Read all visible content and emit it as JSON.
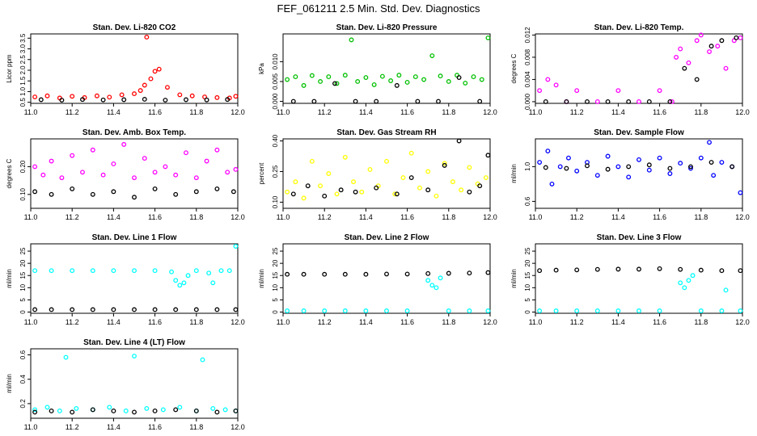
{
  "page_title": "FEF_061211  2.5 Min. Std. Dev. Diagnostics",
  "chart_data": [
    {
      "type": "scatter",
      "title": "Stan. Dev. Li-820 CO2",
      "xlabel": "",
      "ylabel": "Licor ppm",
      "xlim": [
        11.0,
        12.0
      ],
      "ylim": [
        0.45,
        3.7
      ],
      "xticks": [
        "11.0",
        "11.2",
        "11.4",
        "11.6",
        "11.8",
        "12.0"
      ],
      "yticks": [
        "0.5",
        "1.0",
        "1.5",
        "2.0",
        "2.5",
        "3.0",
        "3.5"
      ],
      "grid": false,
      "series": [
        {
          "name": "main",
          "color": "#ff0000",
          "x": [
            11.02,
            11.08,
            11.14,
            11.2,
            11.26,
            11.32,
            11.38,
            11.44,
            11.5,
            11.53,
            11.55,
            11.56,
            11.58,
            11.6,
            11.62,
            11.66,
            11.72,
            11.78,
            11.84,
            11.9,
            11.96,
            11.99
          ],
          "y": [
            0.75,
            0.8,
            0.7,
            0.78,
            0.72,
            0.8,
            0.74,
            0.85,
            0.9,
            1.05,
            1.3,
            3.55,
            1.6,
            1.95,
            2.05,
            1.2,
            0.85,
            0.8,
            0.75,
            0.72,
            0.7,
            0.78
          ]
        },
        {
          "name": "secondary",
          "color": "#000000",
          "x": [
            11.05,
            11.15,
            11.25,
            11.35,
            11.45,
            11.55,
            11.65,
            11.75,
            11.85,
            11.95
          ],
          "y": [
            0.62,
            0.6,
            0.63,
            0.61,
            0.62,
            0.64,
            0.6,
            0.62,
            0.61,
            0.63
          ]
        }
      ]
    },
    {
      "type": "scatter",
      "title": "Stan. Dev. Li-820 Pressure",
      "xlabel": "",
      "ylabel": "kPa",
      "xlim": [
        11.0,
        12.0
      ],
      "ylim": [
        -0.0005,
        0.017
      ],
      "xticks": [
        "11.0",
        "11.2",
        "11.4",
        "11.6",
        "11.8",
        "12.0"
      ],
      "yticks": [
        "0.000",
        "0.005",
        "0.010"
      ],
      "grid": false,
      "series": [
        {
          "name": "main",
          "color": "#00c000",
          "x": [
            11.02,
            11.06,
            11.1,
            11.14,
            11.18,
            11.22,
            11.26,
            11.3,
            11.33,
            11.36,
            11.4,
            11.44,
            11.48,
            11.52,
            11.56,
            11.6,
            11.64,
            11.68,
            11.72,
            11.76,
            11.8,
            11.84,
            11.88,
            11.92,
            11.96,
            11.99
          ],
          "y": [
            0.0055,
            0.0062,
            0.004,
            0.0065,
            0.005,
            0.0062,
            0.0045,
            0.0066,
            0.0155,
            0.005,
            0.006,
            0.0042,
            0.0063,
            0.0052,
            0.0066,
            0.0048,
            0.0062,
            0.0055,
            0.0115,
            0.0064,
            0.005,
            0.0066,
            0.0046,
            0.0062,
            0.0055,
            0.016
          ]
        },
        {
          "name": "secondary",
          "color": "#000000",
          "x": [
            11.05,
            11.15,
            11.25,
            11.35,
            11.45,
            11.55,
            11.65,
            11.75,
            11.85,
            11.95
          ],
          "y": [
            0.0,
            0.0,
            0.0045,
            0.0,
            0.0,
            0.004,
            0.0,
            0.0,
            0.006,
            0.0
          ]
        }
      ]
    },
    {
      "type": "scatter",
      "title": "Stan. Dev. Li-820 Temp.",
      "xlabel": "",
      "ylabel": "degrees C",
      "xlim": [
        11.0,
        12.0
      ],
      "ylim": [
        -0.0003,
        0.0122
      ],
      "xticks": [
        "11.0",
        "11.2",
        "11.4",
        "11.6",
        "11.8",
        "12.0"
      ],
      "yticks": [
        "0.000",
        "0.004",
        "0.008",
        "0.012"
      ],
      "grid": false,
      "series": [
        {
          "name": "main",
          "color": "#ff00ff",
          "x": [
            11.02,
            11.06,
            11.1,
            11.15,
            11.2,
            11.3,
            11.4,
            11.5,
            11.6,
            11.66,
            11.68,
            11.7,
            11.74,
            11.78,
            11.8,
            11.84,
            11.88,
            11.92,
            11.96,
            11.99
          ],
          "y": [
            0.002,
            0.004,
            0.003,
            0.0,
            0.002,
            0.0,
            0.002,
            0.0,
            0.002,
            0.0,
            0.008,
            0.0095,
            0.007,
            0.011,
            0.012,
            0.009,
            0.01,
            0.006,
            0.011,
            0.0115
          ]
        },
        {
          "name": "secondary",
          "color": "#000000",
          "x": [
            11.05,
            11.15,
            11.25,
            11.35,
            11.45,
            11.55,
            11.65,
            11.72,
            11.78,
            11.85,
            11.9,
            11.97
          ],
          "y": [
            0.0,
            0.0,
            0.0,
            0.0,
            0.0,
            0.0,
            0.0,
            0.006,
            0.004,
            0.01,
            0.011,
            0.0115
          ]
        }
      ]
    },
    {
      "type": "scatter",
      "title": "Stan. Dev. Amb. Box Temp.",
      "xlabel": "",
      "ylabel": "degrees C",
      "xlim": [
        11.0,
        12.0
      ],
      "ylim": [
        0.05,
        0.3
      ],
      "xticks": [
        "11.0",
        "11.2",
        "11.4",
        "11.6",
        "11.8",
        "12.0"
      ],
      "yticks": [
        "0.10",
        "0.20"
      ],
      "grid": false,
      "series": [
        {
          "name": "upper",
          "color": "#ff00ff",
          "x": [
            11.02,
            11.06,
            11.1,
            11.15,
            11.2,
            11.25,
            11.3,
            11.35,
            11.4,
            11.45,
            11.5,
            11.55,
            11.6,
            11.65,
            11.7,
            11.75,
            11.8,
            11.85,
            11.9,
            11.95,
            11.99
          ],
          "y": [
            0.2,
            0.17,
            0.22,
            0.16,
            0.24,
            0.18,
            0.26,
            0.17,
            0.21,
            0.28,
            0.16,
            0.23,
            0.18,
            0.2,
            0.17,
            0.25,
            0.16,
            0.22,
            0.26,
            0.18,
            0.19
          ]
        },
        {
          "name": "lower",
          "color": "#000000",
          "x": [
            11.02,
            11.1,
            11.2,
            11.3,
            11.4,
            11.5,
            11.6,
            11.7,
            11.8,
            11.9,
            11.98
          ],
          "y": [
            0.11,
            0.1,
            0.12,
            0.1,
            0.11,
            0.09,
            0.12,
            0.1,
            0.11,
            0.12,
            0.11
          ]
        }
      ]
    },
    {
      "type": "scatter",
      "title": "Stan. Dev. Gas Stream RH",
      "xlabel": "",
      "ylabel": "percent",
      "xlim": [
        11.0,
        12.0
      ],
      "ylim": [
        0.07,
        0.41
      ],
      "xticks": [
        "11.0",
        "11.2",
        "11.4",
        "11.6",
        "11.8",
        "12.0"
      ],
      "yticks": [
        "0.10",
        "0.25",
        "0.40"
      ],
      "grid": false,
      "series": [
        {
          "name": "main",
          "color": "#ffff00",
          "x": [
            11.02,
            11.06,
            11.1,
            11.14,
            11.18,
            11.22,
            11.26,
            11.3,
            11.34,
            11.38,
            11.42,
            11.46,
            11.5,
            11.54,
            11.58,
            11.62,
            11.66,
            11.7,
            11.74,
            11.78,
            11.82,
            11.86,
            11.9,
            11.94,
            11.98
          ],
          "y": [
            0.15,
            0.2,
            0.12,
            0.3,
            0.18,
            0.24,
            0.14,
            0.32,
            0.2,
            0.15,
            0.26,
            0.18,
            0.3,
            0.14,
            0.22,
            0.34,
            0.17,
            0.25,
            0.13,
            0.29,
            0.2,
            0.16,
            0.27,
            0.19,
            0.22
          ]
        },
        {
          "name": "secondary",
          "color": "#000000",
          "x": [
            11.05,
            11.12,
            11.2,
            11.28,
            11.35,
            11.45,
            11.55,
            11.62,
            11.7,
            11.78,
            11.85,
            11.9,
            11.95,
            11.99
          ],
          "y": [
            0.14,
            0.18,
            0.13,
            0.16,
            0.15,
            0.17,
            0.14,
            0.22,
            0.16,
            0.28,
            0.4,
            0.15,
            0.18,
            0.33
          ]
        }
      ]
    },
    {
      "type": "scatter",
      "title": "Stan. Dev. Sample Flow",
      "xlabel": "",
      "ylabel": "ml/min",
      "xlim": [
        11.0,
        12.0
      ],
      "ylim": [
        0.52,
        1.32
      ],
      "xticks": [
        "11.0",
        "11.2",
        "11.4",
        "11.6",
        "11.8",
        "12.0"
      ],
      "yticks": [
        "0.6",
        "1.0"
      ],
      "grid": false,
      "series": [
        {
          "name": "main",
          "color": "#0000ff",
          "x": [
            11.02,
            11.06,
            11.08,
            11.12,
            11.16,
            11.2,
            11.25,
            11.3,
            11.35,
            11.4,
            11.45,
            11.5,
            11.55,
            11.6,
            11.65,
            11.7,
            11.75,
            11.8,
            11.84,
            11.86,
            11.9,
            11.95,
            11.99
          ],
          "y": [
            1.05,
            1.18,
            0.8,
            1.0,
            1.1,
            0.95,
            1.05,
            0.9,
            1.12,
            1.0,
            0.88,
            1.08,
            0.96,
            1.1,
            0.92,
            1.04,
            0.98,
            1.1,
            1.28,
            0.9,
            1.05,
            1.0,
            0.7
          ]
        },
        {
          "name": "secondary",
          "color": "#000000",
          "x": [
            11.05,
            11.15,
            11.25,
            11.35,
            11.45,
            11.55,
            11.65,
            11.75,
            11.85,
            11.95
          ],
          "y": [
            0.99,
            0.98,
            1.01,
            0.97,
            1.0,
            1.02,
            0.98,
            1.0,
            1.05,
            1.0
          ]
        }
      ]
    },
    {
      "type": "scatter",
      "title": "Stan. Dev. Line 1 Flow",
      "xlabel": "",
      "ylabel": "ml/min",
      "xlim": [
        11.0,
        12.0
      ],
      "ylim": [
        -0.5,
        28
      ],
      "xticks": [
        "11.0",
        "11.2",
        "11.4",
        "11.6",
        "11.8",
        "12.0"
      ],
      "yticks": [
        "0",
        "5",
        "10",
        "15",
        "20",
        "25"
      ],
      "grid": false,
      "series": [
        {
          "name": "main",
          "color": "#00ffff",
          "x": [
            11.02,
            11.1,
            11.2,
            11.3,
            11.4,
            11.5,
            11.6,
            11.68,
            11.7,
            11.72,
            11.74,
            11.76,
            11.8,
            11.86,
            11.88,
            11.92,
            11.96,
            11.99
          ],
          "y": [
            17,
            17,
            17,
            17,
            17,
            17,
            17,
            16.5,
            13,
            11,
            12,
            15,
            17,
            16,
            12,
            17,
            17,
            27
          ]
        },
        {
          "name": "secondary",
          "color": "#000000",
          "x": [
            11.02,
            11.1,
            11.2,
            11.3,
            11.4,
            11.5,
            11.6,
            11.7,
            11.8,
            11.9,
            11.99
          ],
          "y": [
            1,
            1,
            1,
            1,
            1,
            1,
            1,
            1,
            1,
            1,
            1
          ]
        }
      ]
    },
    {
      "type": "scatter",
      "title": "Stan. Dev. Line 2 Flow",
      "xlabel": "",
      "ylabel": "ml/min",
      "xlim": [
        11.0,
        12.0
      ],
      "ylim": [
        -0.5,
        28
      ],
      "xticks": [
        "11.0",
        "11.2",
        "11.4",
        "11.6",
        "11.8",
        "12.0"
      ],
      "yticks": [
        "0",
        "5",
        "10",
        "15",
        "20",
        "25"
      ],
      "grid": false,
      "series": [
        {
          "name": "main",
          "color": "#00ffff",
          "x": [
            11.02,
            11.1,
            11.2,
            11.3,
            11.4,
            11.5,
            11.6,
            11.7,
            11.72,
            11.74,
            11.76,
            11.8,
            11.9,
            11.99
          ],
          "y": [
            0.5,
            0.5,
            0.5,
            0.5,
            0.5,
            0.5,
            0.5,
            13,
            11,
            10,
            14,
            0.5,
            0.5,
            0.5
          ]
        },
        {
          "name": "secondary",
          "color": "#000000",
          "x": [
            11.02,
            11.1,
            11.2,
            11.3,
            11.4,
            11.5,
            11.6,
            11.7,
            11.8,
            11.9,
            11.99
          ],
          "y": [
            15.5,
            15.5,
            15.5,
            15.5,
            15.5,
            15.6,
            15.6,
            15.8,
            15.9,
            16,
            16.2
          ]
        }
      ]
    },
    {
      "type": "scatter",
      "title": "Stan. Dev. Line 3 Flow",
      "xlabel": "",
      "ylabel": "ml/min",
      "xlim": [
        11.0,
        12.0
      ],
      "ylim": [
        -0.5,
        28
      ],
      "xticks": [
        "11.0",
        "11.2",
        "11.4",
        "11.6",
        "11.8",
        "12.0"
      ],
      "yticks": [
        "0",
        "5",
        "10",
        "15",
        "20",
        "25"
      ],
      "grid": false,
      "series": [
        {
          "name": "main",
          "color": "#00ffff",
          "x": [
            11.02,
            11.1,
            11.2,
            11.3,
            11.4,
            11.5,
            11.6,
            11.7,
            11.72,
            11.74,
            11.76,
            11.8,
            11.9,
            11.92,
            11.99
          ],
          "y": [
            0.5,
            0.5,
            0.5,
            0.5,
            0.5,
            0.5,
            0.5,
            12,
            10,
            13,
            15,
            0.5,
            0.5,
            9,
            0.5
          ]
        },
        {
          "name": "secondary",
          "color": "#000000",
          "x": [
            11.02,
            11.1,
            11.2,
            11.3,
            11.4,
            11.5,
            11.6,
            11.7,
            11.8,
            11.9,
            11.99
          ],
          "y": [
            17,
            17.2,
            17.3,
            17.5,
            17.6,
            17.6,
            17.8,
            17.5,
            17.2,
            17,
            17
          ]
        }
      ]
    },
    {
      "type": "scatter",
      "title": "Stan. Dev. Line 4 (LT) Flow",
      "xlabel": "",
      "ylabel": "ml/min",
      "xlim": [
        11.0,
        12.0
      ],
      "ylim": [
        0.08,
        0.65
      ],
      "xticks": [
        "11.0",
        "11.2",
        "11.4",
        "11.6",
        "11.8",
        "12.0"
      ],
      "yticks": [
        "0.2",
        "0.4",
        "0.6"
      ],
      "grid": false,
      "series": [
        {
          "name": "main",
          "color": "#00ffff",
          "x": [
            11.02,
            11.08,
            11.14,
            11.17,
            11.22,
            11.3,
            11.38,
            11.46,
            11.5,
            11.56,
            11.64,
            11.72,
            11.8,
            11.83,
            11.88,
            11.94,
            11.99
          ],
          "y": [
            0.15,
            0.17,
            0.14,
            0.58,
            0.16,
            0.15,
            0.17,
            0.14,
            0.59,
            0.16,
            0.15,
            0.17,
            0.14,
            0.56,
            0.16,
            0.15,
            0.14
          ]
        },
        {
          "name": "secondary",
          "color": "#000000",
          "x": [
            11.02,
            11.1,
            11.2,
            11.3,
            11.4,
            11.5,
            11.6,
            11.7,
            11.8,
            11.9,
            11.99
          ],
          "y": [
            0.13,
            0.14,
            0.13,
            0.15,
            0.14,
            0.13,
            0.14,
            0.15,
            0.14,
            0.13,
            0.14
          ]
        }
      ]
    }
  ]
}
